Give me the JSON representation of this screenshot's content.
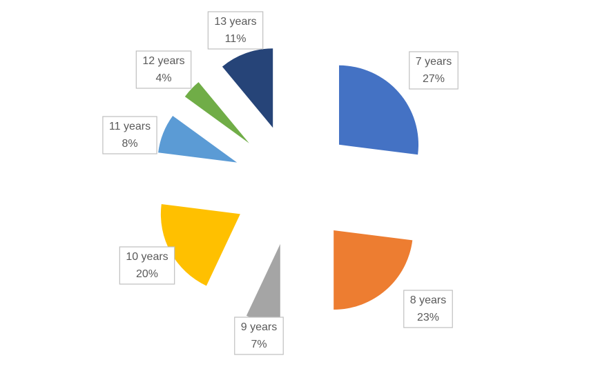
{
  "chart_data": {
    "type": "pie",
    "categories": [
      "7 years",
      "8 years",
      "9 years",
      "10 years",
      "11 years",
      "12 years",
      "13 years"
    ],
    "values": [
      27,
      23,
      7,
      20,
      8,
      4,
      11
    ],
    "value_labels": [
      "27%",
      "23%",
      "7%",
      "20%",
      "8%",
      "4%",
      "11%"
    ],
    "colors": [
      "#4472c4",
      "#ed7d31",
      "#a5a5a5",
      "#ffc000",
      "#5b9bd5",
      "#70ad47",
      "#264478"
    ]
  }
}
